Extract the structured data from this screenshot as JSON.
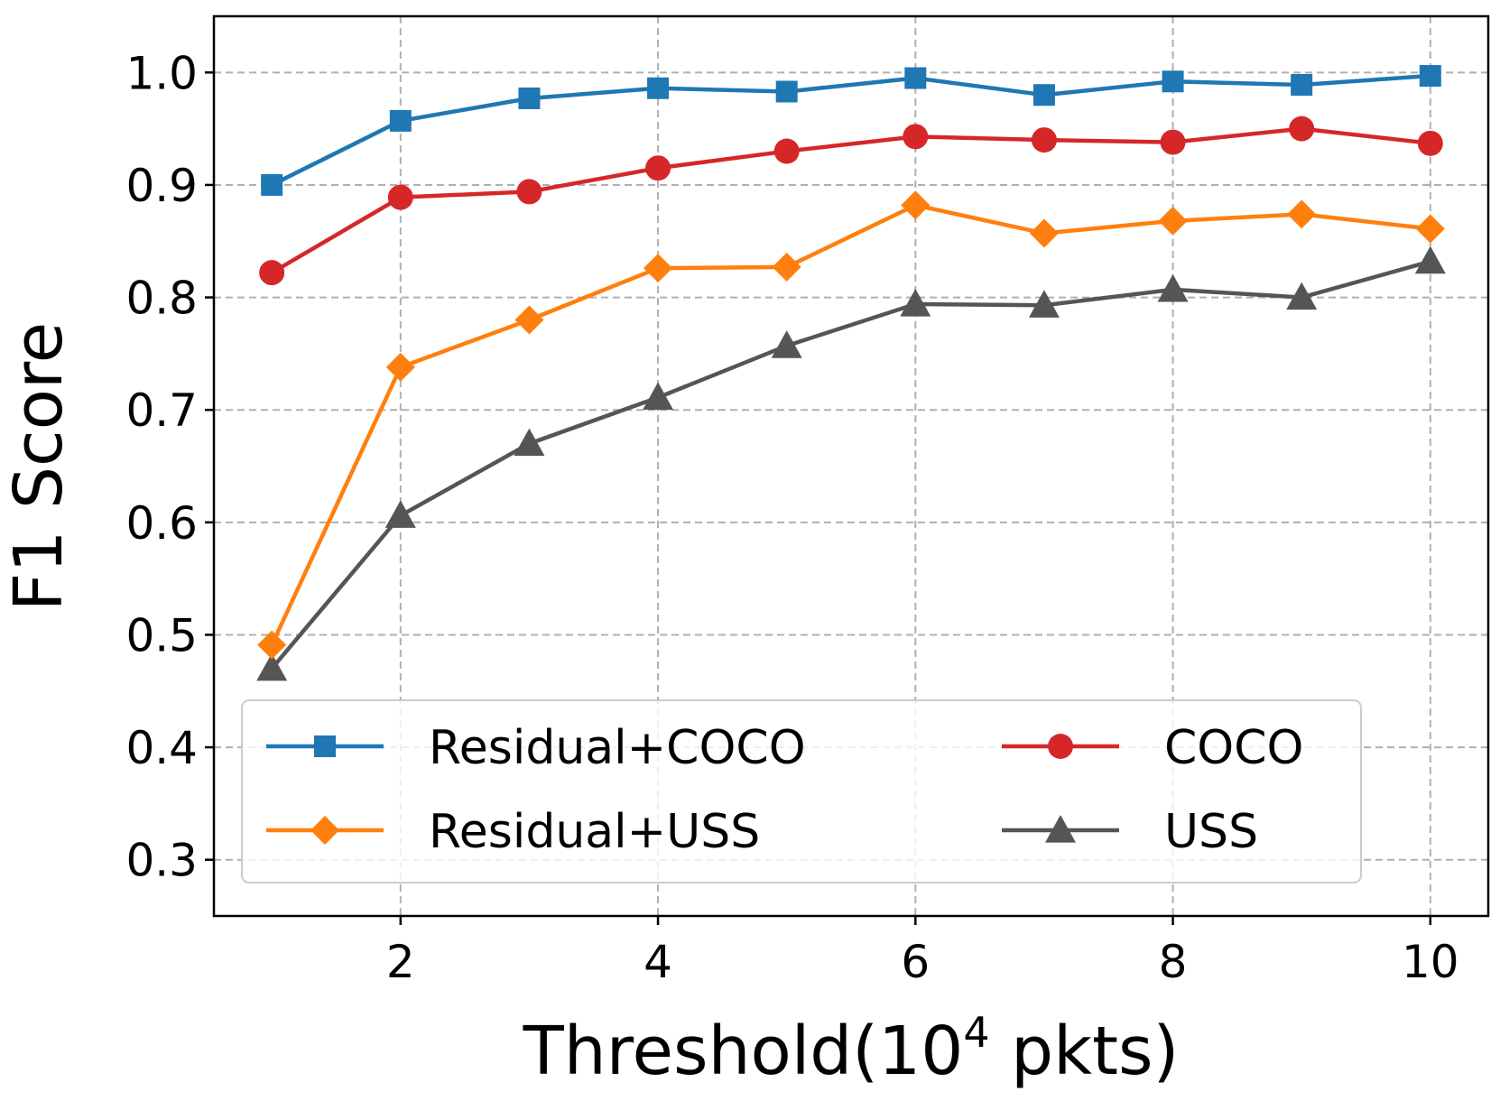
{
  "chart_data": {
    "type": "line",
    "title": "",
    "xlabel": "Threshold(10^4 pkts)",
    "xlabel_parts": {
      "base": "Threshold(10",
      "superscript": "4",
      "suffix": " pkts)"
    },
    "ylabel": "F1 Score",
    "xlim": [
      0.55,
      10.45
    ],
    "ylim": [
      0.25,
      1.05
    ],
    "x_ticks": [
      2,
      4,
      6,
      8,
      10
    ],
    "x_tick_labels": [
      "2",
      "4",
      "6",
      "8",
      "10"
    ],
    "y_ticks": [
      0.3,
      0.4,
      0.5,
      0.6,
      0.7,
      0.8,
      0.9,
      1.0
    ],
    "y_tick_labels": [
      "0.3",
      "0.4",
      "0.5",
      "0.6",
      "0.7",
      "0.8",
      "0.9",
      "1.0"
    ],
    "grid": true,
    "legend_position": "lower-center",
    "x": [
      1,
      2,
      3,
      4,
      5,
      6,
      7,
      8,
      9,
      10
    ],
    "series": [
      {
        "name": "Residual+COCO",
        "color": "#1f77b4",
        "marker": "square",
        "values": [
          0.9,
          0.957,
          0.977,
          0.986,
          0.983,
          0.995,
          0.98,
          0.992,
          0.989,
          0.997
        ]
      },
      {
        "name": "COCO",
        "color": "#d62728",
        "marker": "circle",
        "values": [
          0.822,
          0.889,
          0.894,
          0.915,
          0.93,
          0.943,
          0.94,
          0.938,
          0.95,
          0.937
        ]
      },
      {
        "name": "Residual+USS",
        "color": "#ff7f0e",
        "marker": "diamond",
        "values": [
          0.491,
          0.738,
          0.78,
          0.826,
          0.827,
          0.882,
          0.857,
          0.868,
          0.874,
          0.861
        ]
      },
      {
        "name": "USS",
        "color": "#555555",
        "marker": "triangle",
        "values": [
          0.47,
          0.606,
          0.67,
          0.711,
          0.757,
          0.794,
          0.793,
          0.807,
          0.8,
          0.832
        ]
      }
    ]
  }
}
